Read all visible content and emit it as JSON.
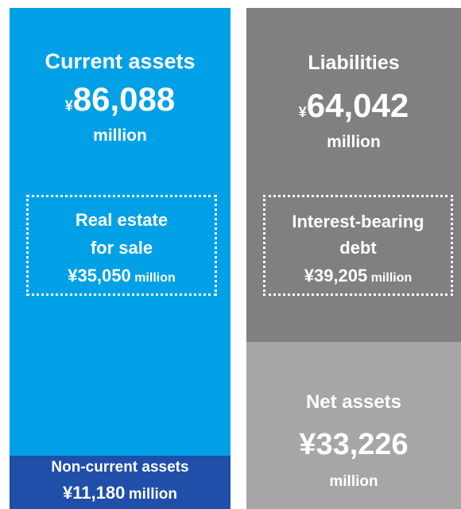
{
  "current_assets": {
    "label": "Current assets",
    "currency": "¥",
    "amount": "86,088",
    "unit": "million",
    "sub": {
      "lines": [
        "Real estate",
        "for sale"
      ],
      "amount": "¥35,050",
      "unit": "million"
    }
  },
  "non_current_assets": {
    "label": "Non-current assets",
    "amount": "¥11,180",
    "unit": "million"
  },
  "liabilities": {
    "label": "Liabilities",
    "currency": "¥",
    "amount": "64,042",
    "unit": "million",
    "sub": {
      "lines": [
        "Interest-bearing",
        "debt"
      ],
      "amount": "¥39,205",
      "unit": "million"
    }
  },
  "net_assets": {
    "label": "Net assets",
    "amount": "¥33,226",
    "unit": "million"
  }
}
